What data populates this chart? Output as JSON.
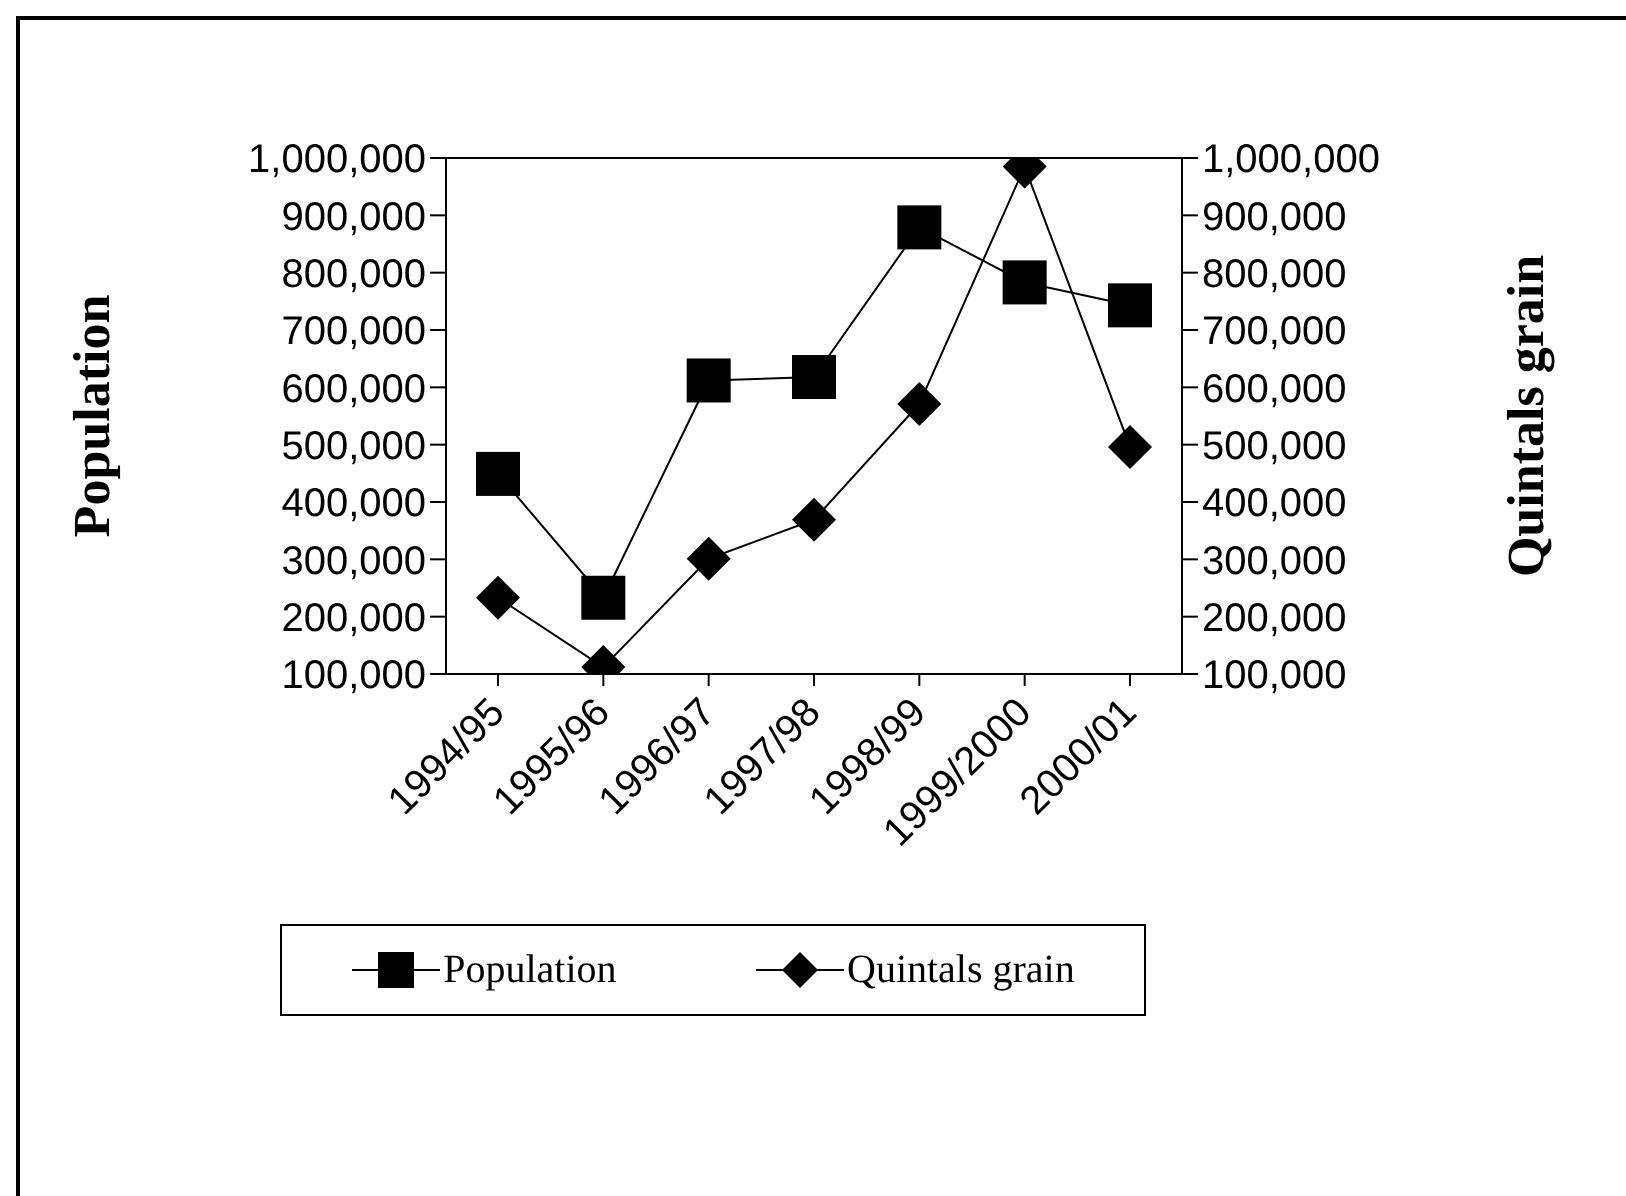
{
  "chart_data": {
    "type": "line",
    "ylabel": "Population",
    "y2label": "Quintals grain",
    "categories": [
      "1994/95",
      "1995/96",
      "1996/97",
      "1997/98",
      "1998/99",
      "1999/2000",
      "2000/01"
    ],
    "series": [
      {
        "name": "Population",
        "color": "#000000",
        "marker": "square",
        "values": [
          449000,
          233000,
          612000,
          618000,
          879000,
          783000,
          743000
        ]
      },
      {
        "name": "Quintals grain",
        "color": "#000000",
        "marker": "diamond",
        "axis": "y2",
        "values": [
          233000,
          112000,
          301000,
          369000,
          571000,
          985000,
          496000
        ]
      }
    ],
    "ylim": [
      100000,
      1000000
    ],
    "yticks": [
      {
        "value": 100000,
        "label": "100,000"
      },
      {
        "value": 200000,
        "label": "200,000"
      },
      {
        "value": 300000,
        "label": "300,000"
      },
      {
        "value": 400000,
        "label": "400,000"
      },
      {
        "value": 500000,
        "label": "500,000"
      },
      {
        "value": 600000,
        "label": "600,000"
      },
      {
        "value": 700000,
        "label": "700,000"
      },
      {
        "value": 800000,
        "label": "800,000"
      },
      {
        "value": 900000,
        "label": "900,000"
      },
      {
        "value": 1000000,
        "label": "1,000,000"
      }
    ],
    "y2lim": [
      100000,
      1000000
    ],
    "y2ticks": [
      {
        "value": 100000,
        "label": "100,000"
      },
      {
        "value": 200000,
        "label": "200,000"
      },
      {
        "value": 300000,
        "label": "300,000"
      },
      {
        "value": 400000,
        "label": "400,000"
      },
      {
        "value": 500000,
        "label": "500,000"
      },
      {
        "value": 600000,
        "label": "600,000"
      },
      {
        "value": 700000,
        "label": "700,000"
      },
      {
        "value": 800000,
        "label": "800,000"
      },
      {
        "value": 900000,
        "label": "900,000"
      },
      {
        "value": 1000000,
        "label": "1,000,000"
      }
    ],
    "grid": false,
    "legend": "bottom"
  }
}
